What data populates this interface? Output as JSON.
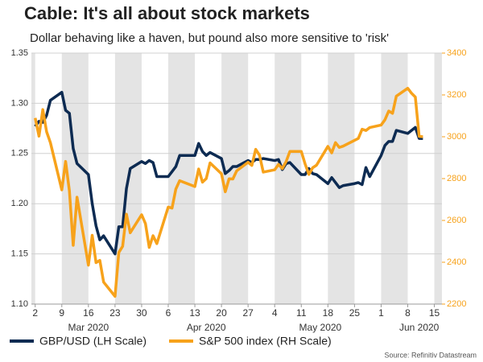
{
  "chart_data": {
    "type": "line",
    "title": "Cable: It's all about stock markets",
    "subtitle": "Dollar behaving like a haven, but pound also more sensitive to 'risk'",
    "source": "Source: Refinitiv Datastream",
    "xlim": [
      "2020-03-01",
      "2020-06-17"
    ],
    "xticks": [
      {
        "value": "2020-03-02",
        "label": "2"
      },
      {
        "value": "2020-03-09",
        "label": "9"
      },
      {
        "value": "2020-03-16",
        "label": "16"
      },
      {
        "value": "2020-03-23",
        "label": "23"
      },
      {
        "value": "2020-03-30",
        "label": "30"
      },
      {
        "value": "2020-04-06",
        "label": "6"
      },
      {
        "value": "2020-04-13",
        "label": "13"
      },
      {
        "value": "2020-04-20",
        "label": "20"
      },
      {
        "value": "2020-04-27",
        "label": "27"
      },
      {
        "value": "2020-05-04",
        "label": "4"
      },
      {
        "value": "2020-05-11",
        "label": "11"
      },
      {
        "value": "2020-05-18",
        "label": "18"
      },
      {
        "value": "2020-05-25",
        "label": "25"
      },
      {
        "value": "2020-06-01",
        "label": "1"
      },
      {
        "value": "2020-06-08",
        "label": "8"
      },
      {
        "value": "2020-06-15",
        "label": "15"
      }
    ],
    "month_labels": [
      {
        "value": "2020-03-16",
        "label": "Mar 2020"
      },
      {
        "value": "2020-04-16",
        "label": "Apr 2020"
      },
      {
        "value": "2020-05-16",
        "label": "May 2020"
      },
      {
        "value": "2020-06-11",
        "label": "Jun 2020"
      }
    ],
    "ylim": [
      1.1,
      1.35
    ],
    "yticks": [
      {
        "value": 1.1,
        "label": "1.10"
      },
      1.15,
      {
        "value": 1.2,
        "label": "1.20"
      },
      1.25,
      {
        "value": 1.3,
        "label": "1.30"
      },
      1.35
    ],
    "y2lim": [
      2200,
      3400
    ],
    "y2ticks": [
      2200,
      2400,
      2600,
      2800,
      3000,
      3200,
      3400
    ],
    "grid": true,
    "series": [
      {
        "name": "GBP/USD (LH Scale)",
        "color": "#0d2b52",
        "x": [
          "2020-03-02",
          "2020-03-03",
          "2020-03-04",
          "2020-03-05",
          "2020-03-06",
          "2020-03-09",
          "2020-03-10",
          "2020-03-11",
          "2020-03-12",
          "2020-03-13",
          "2020-03-16",
          "2020-03-17",
          "2020-03-18",
          "2020-03-19",
          "2020-03-20",
          "2020-03-23",
          "2020-03-24",
          "2020-03-25",
          "2020-03-26",
          "2020-03-27",
          "2020-03-30",
          "2020-03-31",
          "2020-04-01",
          "2020-04-02",
          "2020-04-03",
          "2020-04-06",
          "2020-04-07",
          "2020-04-08",
          "2020-04-09",
          "2020-04-10",
          "2020-04-13",
          "2020-04-14",
          "2020-04-15",
          "2020-04-16",
          "2020-04-17",
          "2020-04-20",
          "2020-04-21",
          "2020-04-22",
          "2020-04-23",
          "2020-04-24",
          "2020-04-27",
          "2020-04-28",
          "2020-04-29",
          "2020-04-30",
          "2020-05-01",
          "2020-05-04",
          "2020-05-05",
          "2020-05-06",
          "2020-05-07",
          "2020-05-08",
          "2020-05-11",
          "2020-05-12",
          "2020-05-13",
          "2020-05-14",
          "2020-05-15",
          "2020-05-18",
          "2020-05-19",
          "2020-05-20",
          "2020-05-21",
          "2020-05-22",
          "2020-05-25",
          "2020-05-26",
          "2020-05-27",
          "2020-05-28",
          "2020-05-29",
          "2020-06-01",
          "2020-06-02",
          "2020-06-03",
          "2020-06-04",
          "2020-06-05",
          "2020-06-08",
          "2020-06-09",
          "2020-06-10",
          "2020-06-11",
          "2020-06-12"
        ],
        "values": [
          1.277,
          1.282,
          1.281,
          1.288,
          1.303,
          1.311,
          1.293,
          1.29,
          1.255,
          1.24,
          1.229,
          1.2,
          1.178,
          1.164,
          1.168,
          1.15,
          1.177,
          1.177,
          1.215,
          1.235,
          1.242,
          1.24,
          1.243,
          1.241,
          1.227,
          1.227,
          1.232,
          1.237,
          1.248,
          1.248,
          1.248,
          1.26,
          1.252,
          1.248,
          1.251,
          1.245,
          1.23,
          1.233,
          1.237,
          1.237,
          1.243,
          1.241,
          1.244,
          1.244,
          1.245,
          1.243,
          1.244,
          1.234,
          1.24,
          1.241,
          1.229,
          1.229,
          1.235,
          1.23,
          1.229,
          1.22,
          1.226,
          1.221,
          1.216,
          1.218,
          1.22,
          1.221,
          1.219,
          1.236,
          1.227,
          1.248,
          1.258,
          1.262,
          1.262,
          1.273,
          1.27,
          1.273,
          1.276,
          1.265,
          1.265
        ]
      },
      {
        "name": "S&P 500 index (RH Scale)",
        "color": "#f7a21b",
        "axis": "y2",
        "x": [
          "2020-03-02",
          "2020-03-03",
          "2020-03-04",
          "2020-03-05",
          "2020-03-06",
          "2020-03-09",
          "2020-03-10",
          "2020-03-11",
          "2020-03-12",
          "2020-03-13",
          "2020-03-16",
          "2020-03-17",
          "2020-03-18",
          "2020-03-19",
          "2020-03-20",
          "2020-03-23",
          "2020-03-24",
          "2020-03-25",
          "2020-03-26",
          "2020-03-27",
          "2020-03-30",
          "2020-03-31",
          "2020-04-01",
          "2020-04-02",
          "2020-04-03",
          "2020-04-06",
          "2020-04-07",
          "2020-04-08",
          "2020-04-09",
          "2020-04-13",
          "2020-04-14",
          "2020-04-15",
          "2020-04-16",
          "2020-04-17",
          "2020-04-20",
          "2020-04-21",
          "2020-04-22",
          "2020-04-23",
          "2020-04-24",
          "2020-04-27",
          "2020-04-28",
          "2020-04-29",
          "2020-04-30",
          "2020-05-01",
          "2020-05-04",
          "2020-05-05",
          "2020-05-06",
          "2020-05-07",
          "2020-05-08",
          "2020-05-11",
          "2020-05-12",
          "2020-05-13",
          "2020-05-14",
          "2020-05-15",
          "2020-05-18",
          "2020-05-19",
          "2020-05-20",
          "2020-05-21",
          "2020-05-22",
          "2020-05-26",
          "2020-05-27",
          "2020-05-28",
          "2020-05-29",
          "2020-06-01",
          "2020-06-02",
          "2020-06-03",
          "2020-06-04",
          "2020-06-05",
          "2020-06-08",
          "2020-06-09",
          "2020-06-10",
          "2020-06-11",
          "2020-06-12"
        ],
        "values": [
          3090,
          3003,
          3130,
          3024,
          2972,
          2746,
          2882,
          2741,
          2481,
          2711,
          2386,
          2529,
          2398,
          2409,
          2305,
          2237,
          2447,
          2476,
          2630,
          2541,
          2627,
          2585,
          2471,
          2527,
          2489,
          2664,
          2659,
          2750,
          2790,
          2762,
          2846,
          2783,
          2800,
          2875,
          2823,
          2737,
          2799,
          2798,
          2837,
          2878,
          2863,
          2940,
          2912,
          2831,
          2842,
          2868,
          2848,
          2881,
          2930,
          2930,
          2870,
          2820,
          2852,
          2864,
          2954,
          2923,
          2972,
          2949,
          2955,
          2992,
          3036,
          3030,
          3044,
          3056,
          3081,
          3123,
          3112,
          3194,
          3232,
          3208,
          3190,
          3002,
          3000
        ]
      }
    ]
  }
}
